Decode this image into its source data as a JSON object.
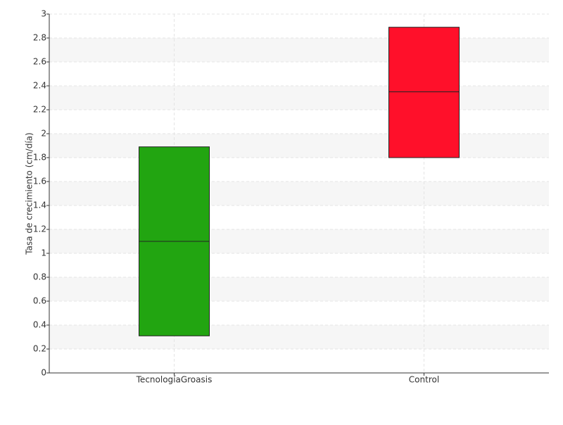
{
  "chart_data": {
    "type": "box",
    "y_label": "Tasa de crecimiento (cm/día)",
    "categories": [
      "TecnologíaGroasis",
      "Control"
    ],
    "low": [
      0.31,
      1.8
    ],
    "median": [
      1.1,
      2.35
    ],
    "high": [
      1.89,
      2.89
    ],
    "colors": [
      "#22a511",
      "#ff102a"
    ],
    "ylim": [
      0,
      3
    ],
    "yticks": [
      0,
      0.2,
      0.4,
      0.6,
      0.8,
      1,
      1.2,
      1.4,
      1.6,
      1.8,
      2,
      2.2,
      2.4,
      2.6,
      2.8,
      3
    ],
    "grid": true
  }
}
